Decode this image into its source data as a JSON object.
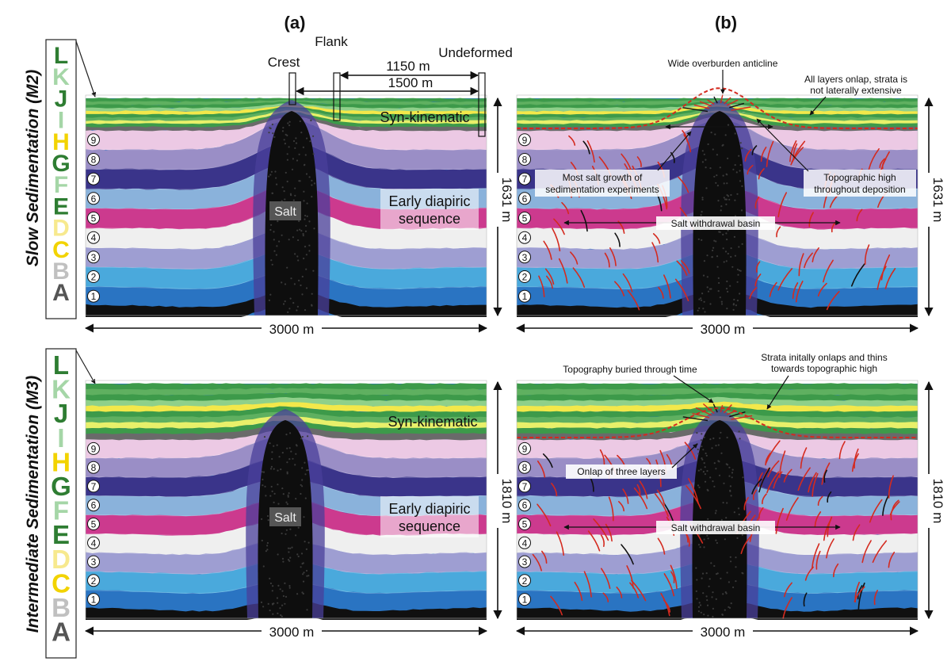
{
  "panels": {
    "a": "(a)",
    "b": "(b)"
  },
  "rows": [
    {
      "title": "Slow Sedimentation (M2)",
      "height_label": "1631 m",
      "width_label": "3000 m"
    },
    {
      "title": "Intermediate Sedimentation (M3)",
      "height_label": "1810 m",
      "width_label": "3000 m"
    }
  ],
  "legend_letters": [
    {
      "letter": "L",
      "color": "#2e7d32"
    },
    {
      "letter": "K",
      "color": "#a5d6a7"
    },
    {
      "letter": "J",
      "color": "#2e7d32"
    },
    {
      "letter": "I",
      "color": "#a5d6a7"
    },
    {
      "letter": "H",
      "color": "#f2d300"
    },
    {
      "letter": "G",
      "color": "#2e7d32"
    },
    {
      "letter": "F",
      "color": "#a5d6a7"
    },
    {
      "letter": "E",
      "color": "#2e7d32"
    },
    {
      "letter": "D",
      "color": "#f7e98e"
    },
    {
      "letter": "C",
      "color": "#f2d300"
    },
    {
      "letter": "B",
      "color": "#c0c0c0"
    },
    {
      "letter": "A",
      "color": "#555555"
    }
  ],
  "layer_numbers": [
    "9",
    "8",
    "7",
    "6",
    "5",
    "4",
    "3",
    "2",
    "1"
  ],
  "model_a": {
    "crest": "Crest",
    "flank": "Flank",
    "undeformed": "Undeformed",
    "dist_1150": "1150 m",
    "dist_1500": "1500 m",
    "syn_kinematic": "Syn-kinematic",
    "early_line1": "Early diapiric",
    "early_line2": "sequence",
    "salt": "Salt"
  },
  "model_b_top": {
    "anticline": "Wide overburden anticline",
    "onlap_line1": "All layers onlap, strata is",
    "onlap_line2": "not laterally extensive",
    "growth_line1": "Most salt growth of",
    "growth_line2": "sedimentation experiments",
    "topo_line1": "Topographic high",
    "topo_line2": "throughout deposition",
    "basin": "Salt withdrawal basin"
  },
  "model_b_bottom": {
    "buried": "Topography buried through time",
    "strata_line1": "Strata initally onlaps and thins",
    "strata_line2": "towards topographic high",
    "onlap3": "Onlap of three layers",
    "basin": "Salt withdrawal basin"
  },
  "colors": {
    "salt": "#0e0e0e",
    "fault_red": "#d42a1f",
    "pink": "#ecc9e4",
    "purple": "#9a8ec6",
    "navy": "#3a348a",
    "lightblue": "#8ab2db",
    "magenta": "#cc3a8e",
    "white": "#efefef",
    "lavender": "#9e9ed2",
    "sky": "#4aa9dc",
    "blue": "#2a74c2",
    "green": "#3d9a4a",
    "yellow": "#f3e84a"
  }
}
